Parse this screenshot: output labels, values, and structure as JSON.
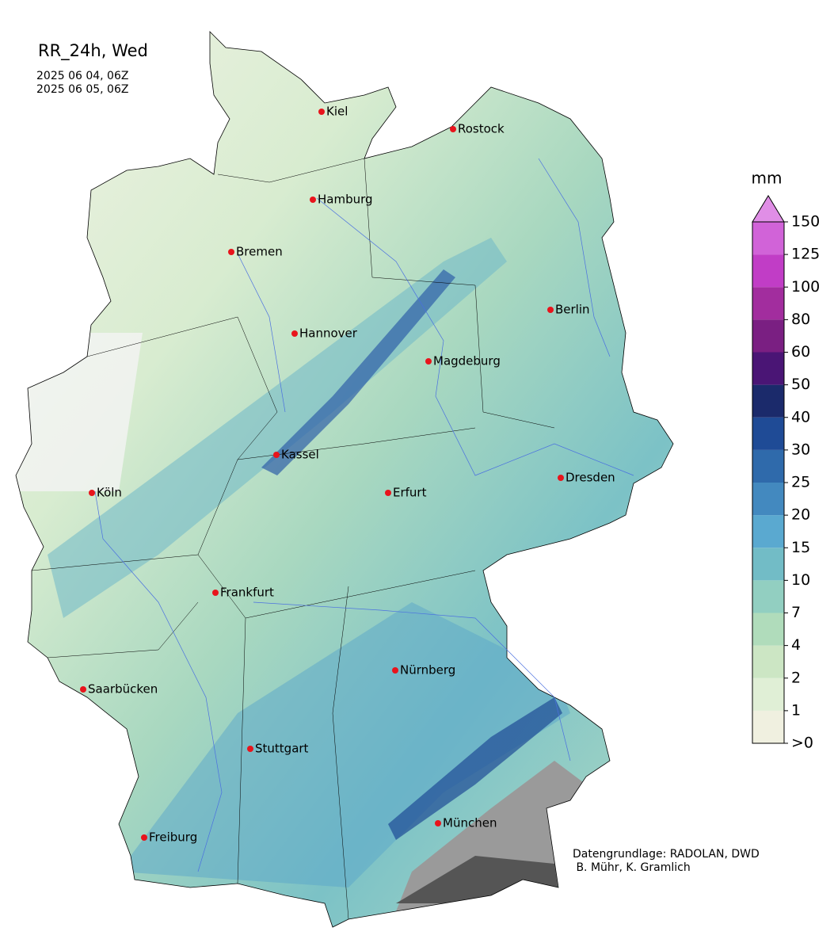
{
  "title": "RR_24h, Wed",
  "dates": [
    "2025 06 04, 06Z",
    "2025 06 05, 06Z"
  ],
  "cities": [
    {
      "name": "Kiel"
    },
    {
      "name": "Rostock"
    },
    {
      "name": "Hamburg"
    },
    {
      "name": "Bremen"
    },
    {
      "name": "Berlin"
    },
    {
      "name": "Hannover"
    },
    {
      "name": "Magdeburg"
    },
    {
      "name": "Kassel"
    },
    {
      "name": "Dresden"
    },
    {
      "name": "Köln"
    },
    {
      "name": "Erfurt"
    },
    {
      "name": "Frankfurt"
    },
    {
      "name": "Nürnberg"
    },
    {
      "name": "Saarbücken"
    },
    {
      "name": "Stuttgart"
    },
    {
      "name": "Freiburg"
    },
    {
      "name": "München"
    }
  ],
  "colorbar": {
    "unit": "mm",
    "ticks": [
      {
        "value": 0,
        "label": ">0"
      },
      1,
      2,
      4,
      7,
      10,
      15,
      20,
      25,
      30,
      40,
      50,
      60,
      80,
      100,
      125,
      150
    ],
    "colors": [
      "#f0f0e0",
      "#e0efd6",
      "#cce6c4",
      "#b0dcbb",
      "#92cfc1",
      "#72bcc6",
      "#5aa9d0",
      "#4389bf",
      "#2f6aab",
      "#1f4b96",
      "#1b2a6b",
      "#4a1575",
      "#7a1f82",
      "#a22d9e",
      "#c13dc6",
      "#d163d8"
    ],
    "extend_color": "#e08ee6"
  },
  "credit": [
    "Datengrundlage: RADOLAN, DWD",
    " B. Mühr, K. Gramlich"
  ]
}
